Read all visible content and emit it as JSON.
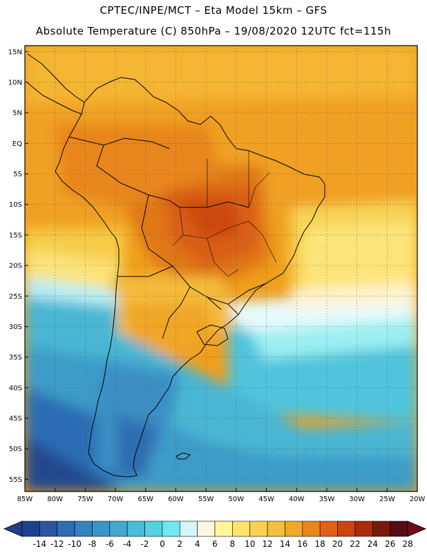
{
  "header": {
    "line1": "CPTEC/INPE/MCT – Eta Model 15km – GFS",
    "line2": "Absolute Temperature (C) 850hPa – 19/08/2020 12UTC fct=115h"
  },
  "map": {
    "lat_labels": [
      "15N",
      "10N",
      "5N",
      "EQ",
      "5S",
      "10S",
      "15S",
      "20S",
      "25S",
      "30S",
      "35S",
      "40S",
      "45S",
      "50S",
      "55S"
    ],
    "lon_labels": [
      "85W",
      "80W",
      "75W",
      "70W",
      "65W",
      "60W",
      "55W",
      "50W",
      "45W",
      "40W",
      "35W",
      "30W",
      "25W",
      "20W"
    ],
    "lat_values": [
      15,
      10,
      5,
      0,
      -5,
      -10,
      -15,
      -20,
      -25,
      -30,
      -35,
      -40,
      -45,
      -50,
      -55
    ],
    "lon_values": [
      -85,
      -80,
      -75,
      -70,
      -65,
      -60,
      -55,
      -50,
      -45,
      -40,
      -35,
      -30,
      -25,
      -20
    ],
    "extent": {
      "lon_min": -85,
      "lon_max": -20,
      "lat_min": -57,
      "lat_max": 16
    }
  },
  "colorbar": {
    "labels": [
      "-14",
      "-12",
      "-10",
      "-8",
      "-6",
      "-4",
      "-2",
      "0",
      "2",
      "4",
      "6",
      "8",
      "10",
      "12",
      "14",
      "16",
      "18",
      "20",
      "22",
      "24",
      "26",
      "28"
    ],
    "colors": [
      "#1f3f8f",
      "#2a55a3",
      "#2f6cb4",
      "#3582c0",
      "#3b96c8",
      "#42a8d0",
      "#48bcd8",
      "#55d2e2",
      "#6fe8f0",
      "#d4f6fa",
      "#fff8e0",
      "#fff799",
      "#ffe36b",
      "#f9d14d",
      "#f4bf3d",
      "#f0a828",
      "#e8861c",
      "#e06014",
      "#cc4410",
      "#a82c0c",
      "#7a1a08",
      "#5a0a14"
    ]
  }
}
